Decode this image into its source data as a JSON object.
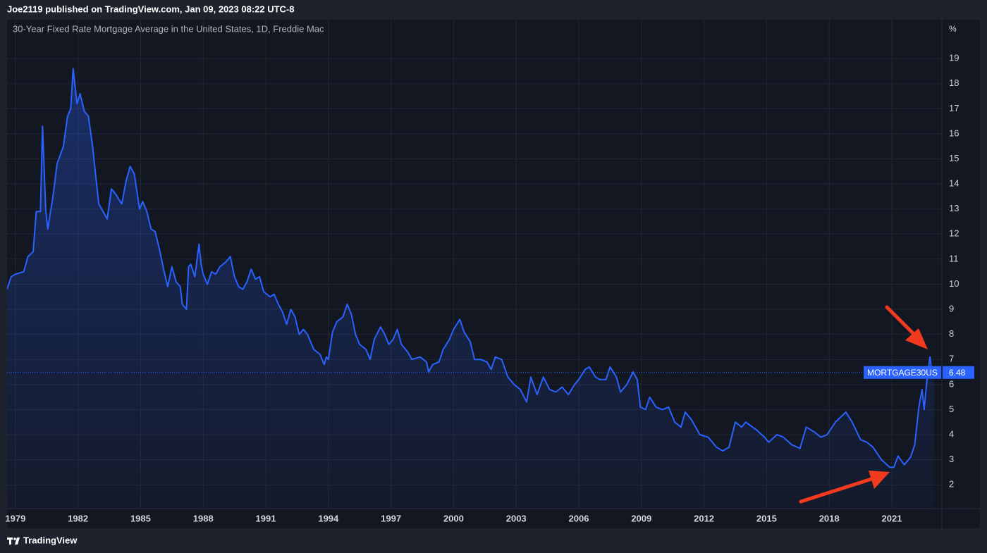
{
  "header": {
    "publisher": "Joe2119 published on TradingView.com, Jan 09, 2023 08:22 UTC-8"
  },
  "footer": {
    "brand": "TradingView"
  },
  "chart_data": {
    "type": "area",
    "title": "30-Year Fixed Rate Mortgage Average in the United States, 1D, Freddie Mac",
    "y_unit": "%",
    "x": [
      1978.6,
      1978.8,
      1979.0,
      1979.4,
      1979.6,
      1979.85,
      1980.0,
      1980.2,
      1980.3,
      1980.45,
      1980.55,
      1980.8,
      1981.0,
      1981.3,
      1981.5,
      1981.65,
      1981.77,
      1981.95,
      1982.1,
      1982.3,
      1982.5,
      1982.7,
      1982.85,
      1983.0,
      1983.4,
      1983.6,
      1983.8,
      1984.1,
      1984.3,
      1984.5,
      1984.7,
      1984.95,
      1985.1,
      1985.3,
      1985.5,
      1985.7,
      1985.9,
      1986.1,
      1986.3,
      1986.5,
      1986.7,
      1986.9,
      1987.0,
      1987.2,
      1987.3,
      1987.4,
      1987.6,
      1987.8,
      1987.9,
      1988.0,
      1988.2,
      1988.4,
      1988.6,
      1988.8,
      1989.1,
      1989.3,
      1989.5,
      1989.7,
      1989.9,
      1990.1,
      1990.3,
      1990.5,
      1990.7,
      1990.9,
      1991.2,
      1991.4,
      1991.6,
      1991.8,
      1992.0,
      1992.2,
      1992.4,
      1992.6,
      1992.8,
      1993.0,
      1993.3,
      1993.6,
      1993.8,
      1993.9,
      1994.0,
      1994.2,
      1994.4,
      1994.7,
      1994.9,
      1995.1,
      1995.3,
      1995.5,
      1995.8,
      1996.0,
      1996.2,
      1996.5,
      1996.7,
      1996.9,
      1997.1,
      1997.3,
      1997.5,
      1997.8,
      1998.0,
      1998.4,
      1998.7,
      1998.8,
      1999.0,
      1999.3,
      1999.5,
      1999.8,
      2000.0,
      2000.3,
      2000.5,
      2000.8,
      2001.0,
      2001.3,
      2001.6,
      2001.8,
      2002.0,
      2002.3,
      2002.6,
      2002.9,
      2003.2,
      2003.5,
      2003.7,
      2004.0,
      2004.3,
      2004.6,
      2004.9,
      2005.2,
      2005.5,
      2005.8,
      2006.0,
      2006.3,
      2006.5,
      2006.8,
      2007.0,
      2007.3,
      2007.5,
      2007.8,
      2008.0,
      2008.3,
      2008.6,
      2008.8,
      2008.95,
      2009.2,
      2009.4,
      2009.7,
      2010.0,
      2010.3,
      2010.6,
      2010.9,
      2011.1,
      2011.4,
      2011.8,
      2012.2,
      2012.6,
      2012.9,
      2013.2,
      2013.5,
      2013.8,
      2014.0,
      2014.5,
      2014.9,
      2015.1,
      2015.5,
      2015.8,
      2016.2,
      2016.6,
      2016.9,
      2017.3,
      2017.6,
      2017.9,
      2018.3,
      2018.8,
      2019.1,
      2019.5,
      2019.8,
      2020.1,
      2020.5,
      2020.9,
      2021.1,
      2021.3,
      2021.6,
      2021.9,
      2022.1,
      2022.3,
      2022.45,
      2022.55,
      2022.7,
      2022.83,
      2022.95,
      2023.02
    ],
    "series": [
      {
        "name": "MORTGAGE30US",
        "color": "#2962ff",
        "values": [
          9.8,
          10.3,
          10.4,
          10.5,
          11.1,
          11.3,
          12.9,
          12.9,
          16.3,
          13.0,
          12.2,
          13.5,
          14.8,
          15.5,
          16.7,
          17.0,
          18.6,
          17.2,
          17.6,
          16.9,
          16.7,
          15.5,
          14.3,
          13.2,
          12.6,
          13.8,
          13.6,
          13.2,
          14.1,
          14.7,
          14.4,
          13.0,
          13.3,
          12.9,
          12.2,
          12.1,
          11.4,
          10.6,
          9.9,
          10.7,
          10.1,
          9.9,
          9.2,
          9.0,
          10.7,
          10.8,
          10.3,
          11.6,
          10.8,
          10.4,
          10.0,
          10.5,
          10.4,
          10.7,
          10.9,
          11.1,
          10.3,
          9.9,
          9.8,
          10.1,
          10.6,
          10.2,
          10.3,
          9.7,
          9.5,
          9.6,
          9.2,
          8.9,
          8.4,
          9.0,
          8.7,
          8.0,
          8.2,
          8.0,
          7.4,
          7.2,
          6.8,
          7.1,
          7.0,
          8.1,
          8.5,
          8.7,
          9.2,
          8.8,
          8.0,
          7.6,
          7.4,
          7.0,
          7.8,
          8.3,
          8.0,
          7.6,
          7.8,
          8.2,
          7.6,
          7.3,
          7.0,
          7.1,
          6.9,
          6.5,
          6.8,
          6.9,
          7.4,
          7.8,
          8.2,
          8.6,
          8.1,
          7.7,
          7.0,
          7.0,
          6.9,
          6.6,
          7.1,
          7.0,
          6.3,
          6.0,
          5.8,
          5.3,
          6.3,
          5.6,
          6.3,
          5.8,
          5.7,
          5.9,
          5.6,
          6.0,
          6.2,
          6.6,
          6.7,
          6.3,
          6.2,
          6.2,
          6.7,
          6.3,
          5.7,
          6.0,
          6.5,
          6.2,
          5.1,
          5.0,
          5.5,
          5.1,
          5.0,
          5.1,
          4.5,
          4.3,
          4.9,
          4.6,
          4.0,
          3.9,
          3.5,
          3.35,
          3.5,
          4.5,
          4.3,
          4.5,
          4.2,
          3.9,
          3.7,
          4.0,
          3.9,
          3.6,
          3.45,
          4.3,
          4.1,
          3.9,
          4.0,
          4.5,
          4.9,
          4.5,
          3.8,
          3.7,
          3.5,
          3.0,
          2.7,
          2.7,
          3.15,
          2.8,
          3.1,
          3.6,
          5.1,
          5.8,
          5.0,
          6.3,
          7.1,
          6.3,
          6.48
        ]
      }
    ],
    "xlim": [
      1978.6,
      2023.4
    ],
    "xticks": [
      1979,
      1982,
      1985,
      1988,
      1991,
      1994,
      1997,
      2000,
      2003,
      2006,
      2009,
      2012,
      2015,
      2018,
      2021
    ],
    "ylim": [
      1.05,
      20.55
    ],
    "yticks": [
      2,
      3,
      4,
      5,
      6,
      7,
      8,
      9,
      10,
      11,
      12,
      13,
      14,
      15,
      16,
      17,
      18,
      19
    ],
    "grid": true
  }
}
